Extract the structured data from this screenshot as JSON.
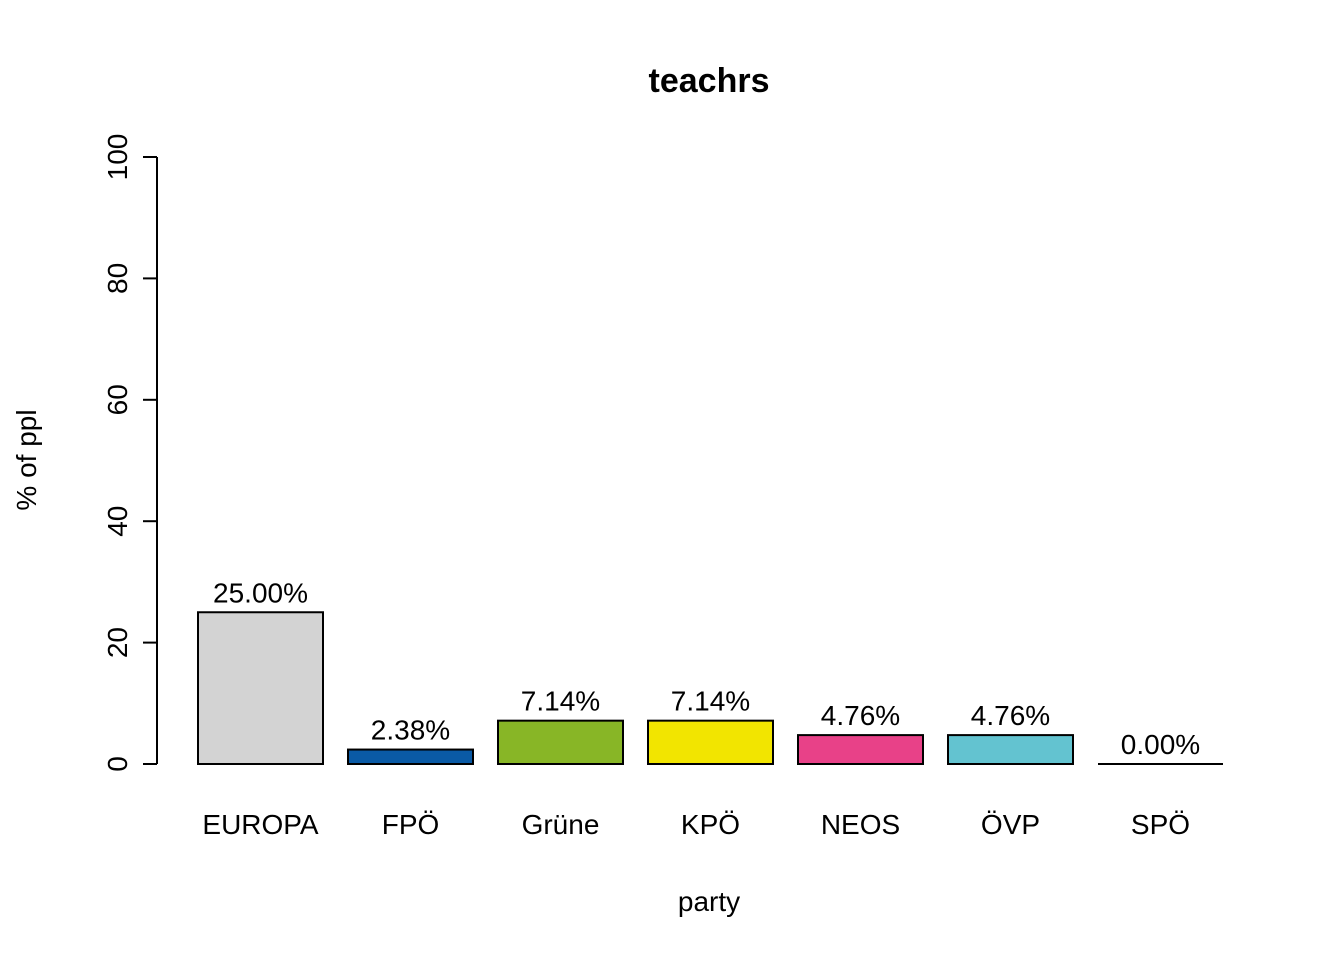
{
  "chart_data": {
    "type": "bar",
    "title": "teachrs",
    "xlabel": "party",
    "ylabel": "% of ppl",
    "ylim": [
      0,
      100
    ],
    "yticks": [
      0,
      20,
      40,
      60,
      80,
      100
    ],
    "categories": [
      "EUROPA",
      "FPÖ",
      "Grüne",
      "KPÖ",
      "NEOS",
      "ÖVP",
      "SPÖ"
    ],
    "values": [
      25.0,
      2.38,
      7.14,
      7.14,
      4.76,
      4.76,
      0.0
    ],
    "value_labels": [
      "25.00%",
      "2.38%",
      "7.14%",
      "7.14%",
      "4.76%",
      "4.76%",
      "0.00%"
    ],
    "colors": [
      "#d3d3d3",
      "#0a5aa5",
      "#88b626",
      "#f2e500",
      "#e84188",
      "#63c3d0",
      "#e3000f"
    ],
    "grid": false,
    "legend": "none"
  }
}
